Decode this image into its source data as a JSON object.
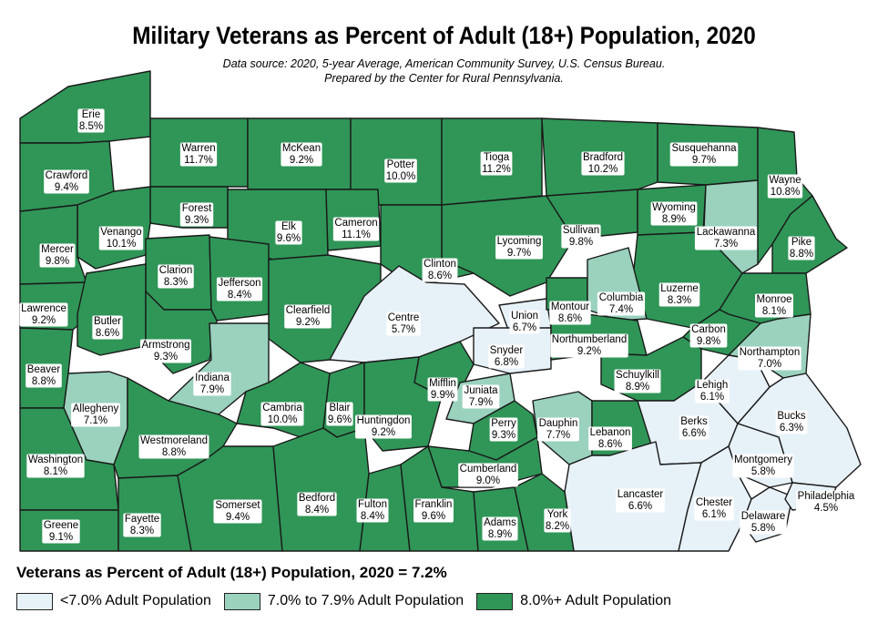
{
  "title": "Military Veterans as Percent of Adult (18+) Population, 2020",
  "subtitle_line1": "Data source: 2020, 5-year Average, American Community Survey, U.S. Census Bureau.",
  "subtitle_line2": "Prepared by the Center for Rural Pennsylvania.",
  "statewide": "Veterans as Percent of Adult (18+) Population, 2020 = 7.2%",
  "colors": {
    "low": "#e7f1f8",
    "mid": "#9ad2bd",
    "high": "#2f9657",
    "border": "#1a1a1a"
  },
  "legend": [
    {
      "label": "<7.0% Adult Population",
      "color_key": "low"
    },
    {
      "label": "7.0% to 7.9% Adult Population",
      "color_key": "mid"
    },
    {
      "label": "8.0%+ Adult Population",
      "color_key": "high"
    }
  ],
  "counties": [
    {
      "name": "Erie",
      "value": "8.5%",
      "category": "high"
    },
    {
      "name": "Warren",
      "value": "11.7%",
      "category": "high"
    },
    {
      "name": "McKean",
      "value": "9.2%",
      "category": "high"
    },
    {
      "name": "Potter",
      "value": "10.0%",
      "category": "high"
    },
    {
      "name": "Tioga",
      "value": "11.2%",
      "category": "high"
    },
    {
      "name": "Bradford",
      "value": "10.2%",
      "category": "high"
    },
    {
      "name": "Susquehanna",
      "value": "9.7%",
      "category": "high"
    },
    {
      "name": "Wayne",
      "value": "10.8%",
      "category": "high"
    },
    {
      "name": "Crawford",
      "value": "9.4%",
      "category": "high"
    },
    {
      "name": "Forest",
      "value": "9.3%",
      "category": "high"
    },
    {
      "name": "Venango",
      "value": "10.1%",
      "category": "high"
    },
    {
      "name": "Elk",
      "value": "9.6%",
      "category": "high"
    },
    {
      "name": "Cameron",
      "value": "11.1%",
      "category": "high"
    },
    {
      "name": "Lycoming",
      "value": "9.7%",
      "category": "high"
    },
    {
      "name": "Sullivan",
      "value": "9.8%",
      "category": "high"
    },
    {
      "name": "Wyoming",
      "value": "8.9%",
      "category": "high"
    },
    {
      "name": "Lackawanna",
      "value": "7.3%",
      "category": "mid"
    },
    {
      "name": "Pike",
      "value": "8.8%",
      "category": "high"
    },
    {
      "name": "Mercer",
      "value": "9.8%",
      "category": "high"
    },
    {
      "name": "Clarion",
      "value": "8.3%",
      "category": "high"
    },
    {
      "name": "Jefferson",
      "value": "8.4%",
      "category": "high"
    },
    {
      "name": "Clinton",
      "value": "8.6%",
      "category": "high"
    },
    {
      "name": "Luzerne",
      "value": "8.3%",
      "category": "high"
    },
    {
      "name": "Lawrence",
      "value": "9.2%",
      "category": "high"
    },
    {
      "name": "Butler",
      "value": "8.6%",
      "category": "high"
    },
    {
      "name": "Clearfield",
      "value": "9.2%",
      "category": "high"
    },
    {
      "name": "Centre",
      "value": "5.7%",
      "category": "low"
    },
    {
      "name": "Union",
      "value": "6.7%",
      "category": "low"
    },
    {
      "name": "Montour",
      "value": "8.6%",
      "category": "high"
    },
    {
      "name": "Columbia",
      "value": "7.4%",
      "category": "mid"
    },
    {
      "name": "Monroe",
      "value": "8.1%",
      "category": "high"
    },
    {
      "name": "Armstrong",
      "value": "9.3%",
      "category": "high"
    },
    {
      "name": "Snyder",
      "value": "6.8%",
      "category": "low"
    },
    {
      "name": "Northumberland",
      "value": "9.2%",
      "category": "high"
    },
    {
      "name": "Carbon",
      "value": "9.8%",
      "category": "high"
    },
    {
      "name": "Beaver",
      "value": "8.8%",
      "category": "high"
    },
    {
      "name": "Indiana",
      "value": "7.9%",
      "category": "mid"
    },
    {
      "name": "Mifflin",
      "value": "9.9%",
      "category": "high"
    },
    {
      "name": "Juniata",
      "value": "7.9%",
      "category": "mid"
    },
    {
      "name": "Schuylkill",
      "value": "8.9%",
      "category": "high"
    },
    {
      "name": "Northampton",
      "value": "7.0%",
      "category": "mid"
    },
    {
      "name": "Allegheny",
      "value": "7.1%",
      "category": "mid"
    },
    {
      "name": "Cambria",
      "value": "10.0%",
      "category": "high"
    },
    {
      "name": "Blair",
      "value": "9.6%",
      "category": "high"
    },
    {
      "name": "Huntingdon",
      "value": "9.2%",
      "category": "high"
    },
    {
      "name": "Perry",
      "value": "9.3%",
      "category": "high"
    },
    {
      "name": "Dauphin",
      "value": "7.7%",
      "category": "mid"
    },
    {
      "name": "Lebanon",
      "value": "8.6%",
      "category": "high"
    },
    {
      "name": "Berks",
      "value": "6.6%",
      "category": "low"
    },
    {
      "name": "Lehigh",
      "value": "6.1%",
      "category": "low"
    },
    {
      "name": "Bucks",
      "value": "6.3%",
      "category": "low"
    },
    {
      "name": "Washington",
      "value": "8.1%",
      "category": "high"
    },
    {
      "name": "Westmoreland",
      "value": "8.8%",
      "category": "high"
    },
    {
      "name": "Cumberland",
      "value": "9.0%",
      "category": "high"
    },
    {
      "name": "Montgomery",
      "value": "5.8%",
      "category": "low"
    },
    {
      "name": "Lancaster",
      "value": "6.6%",
      "category": "low"
    },
    {
      "name": "Somerset",
      "value": "9.4%",
      "category": "high"
    },
    {
      "name": "Bedford",
      "value": "8.4%",
      "category": "high"
    },
    {
      "name": "Fulton",
      "value": "8.4%",
      "category": "high"
    },
    {
      "name": "Franklin",
      "value": "9.6%",
      "category": "high"
    },
    {
      "name": "Adams",
      "value": "8.9%",
      "category": "high"
    },
    {
      "name": "York",
      "value": "8.2%",
      "category": "high"
    },
    {
      "name": "Chester",
      "value": "6.1%",
      "category": "low"
    },
    {
      "name": "Delaware",
      "value": "5.8%",
      "category": "low"
    },
    {
      "name": "Philadelphia",
      "value": "4.5%",
      "category": "low"
    },
    {
      "name": "Greene",
      "value": "9.1%",
      "category": "high"
    },
    {
      "name": "Fayette",
      "value": "8.3%",
      "category": "high"
    }
  ]
}
